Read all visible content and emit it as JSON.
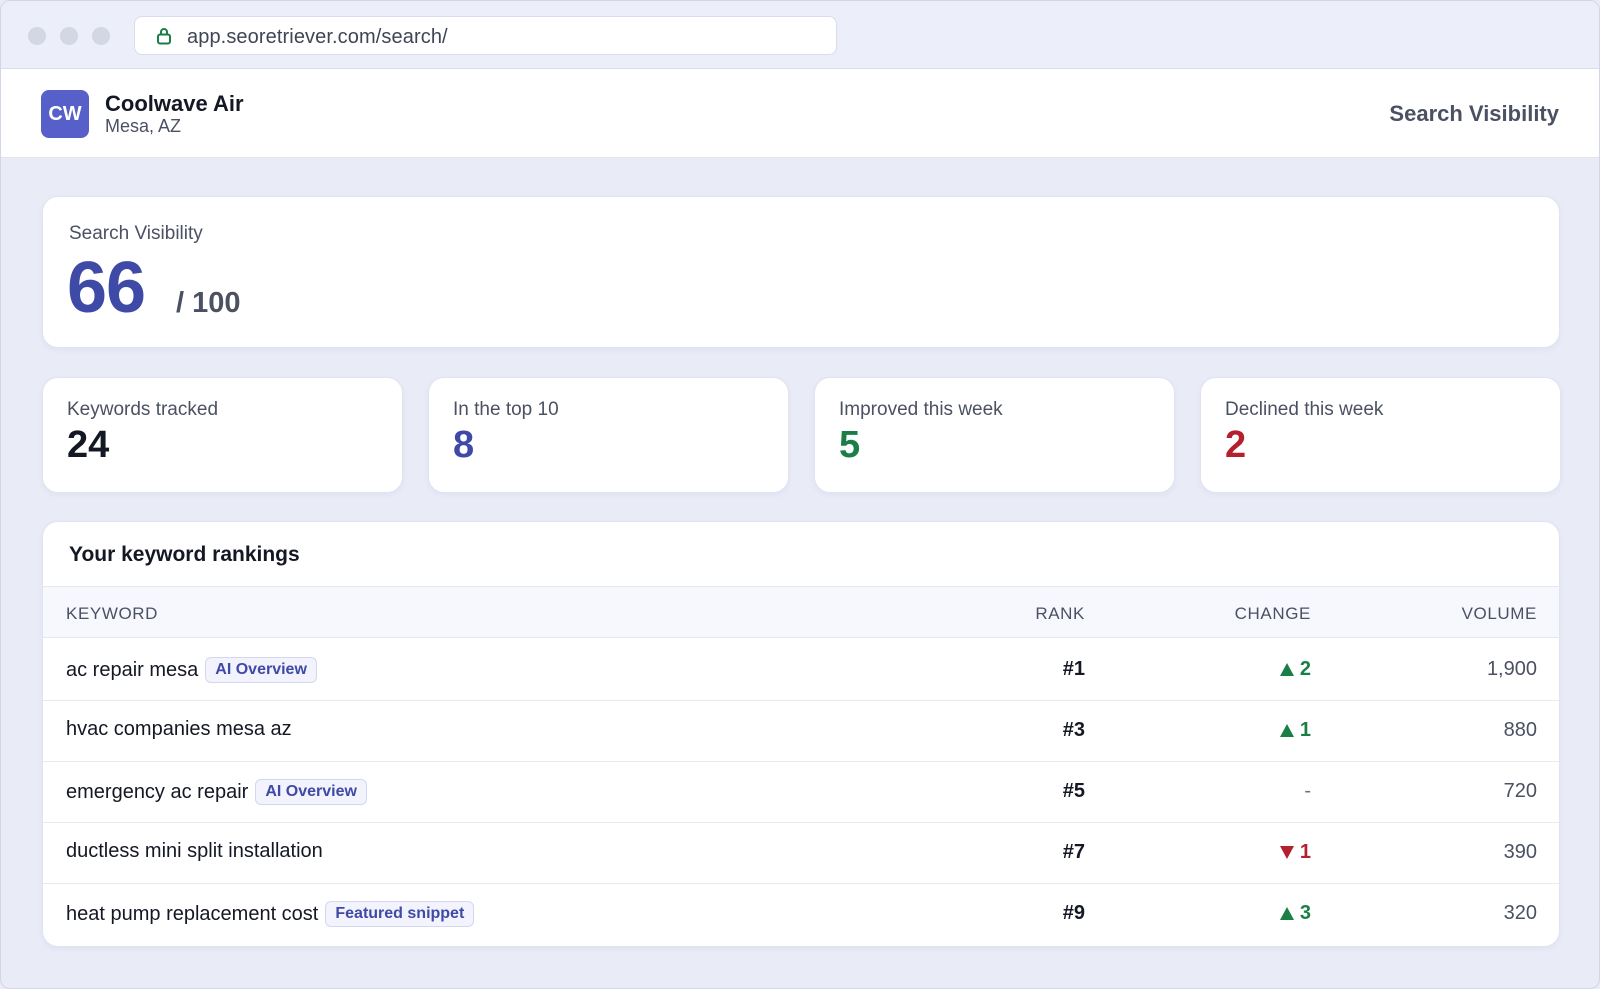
{
  "browser": {
    "url": "app.seoretriever.com/search/"
  },
  "header": {
    "logo_initials": "CW",
    "business_name": "Coolwave Air",
    "location": "Mesa, AZ",
    "page_title": "Search Visibility"
  },
  "score": {
    "label": "Search Visibility",
    "value": "66",
    "max": "/ 100"
  },
  "stats": [
    {
      "label": "Keywords tracked",
      "value": "24",
      "color": "#141824"
    },
    {
      "label": "In the top 10",
      "value": "8",
      "color": "#3e4aa6"
    },
    {
      "label": "Improved this week",
      "value": "5",
      "color": "#1a7f46"
    },
    {
      "label": "Declined this week",
      "value": "2",
      "color": "#b3202e"
    }
  ],
  "rankings": {
    "title": "Your keyword rankings",
    "columns": {
      "keyword": "KEYWORD",
      "rank": "RANK",
      "change": "CHANGE",
      "volume": "VOLUME"
    },
    "rows": [
      {
        "keyword": "ac repair mesa",
        "tag": "AI Overview",
        "rank": "#1",
        "change_dir": "up",
        "change": "2",
        "volume": "1,900"
      },
      {
        "keyword": "hvac companies mesa az",
        "tag": "",
        "rank": "#3",
        "change_dir": "up",
        "change": "1",
        "volume": "880"
      },
      {
        "keyword": "emergency ac repair",
        "tag": "AI Overview",
        "rank": "#5",
        "change_dir": "flat",
        "change": "-",
        "volume": "720"
      },
      {
        "keyword": "ductless mini split installation",
        "tag": "",
        "rank": "#7",
        "change_dir": "down",
        "change": "1",
        "volume": "390"
      },
      {
        "keyword": "heat pump replacement cost",
        "tag": "Featured snippet",
        "rank": "#9",
        "change_dir": "up",
        "change": "3",
        "volume": "320"
      }
    ]
  }
}
